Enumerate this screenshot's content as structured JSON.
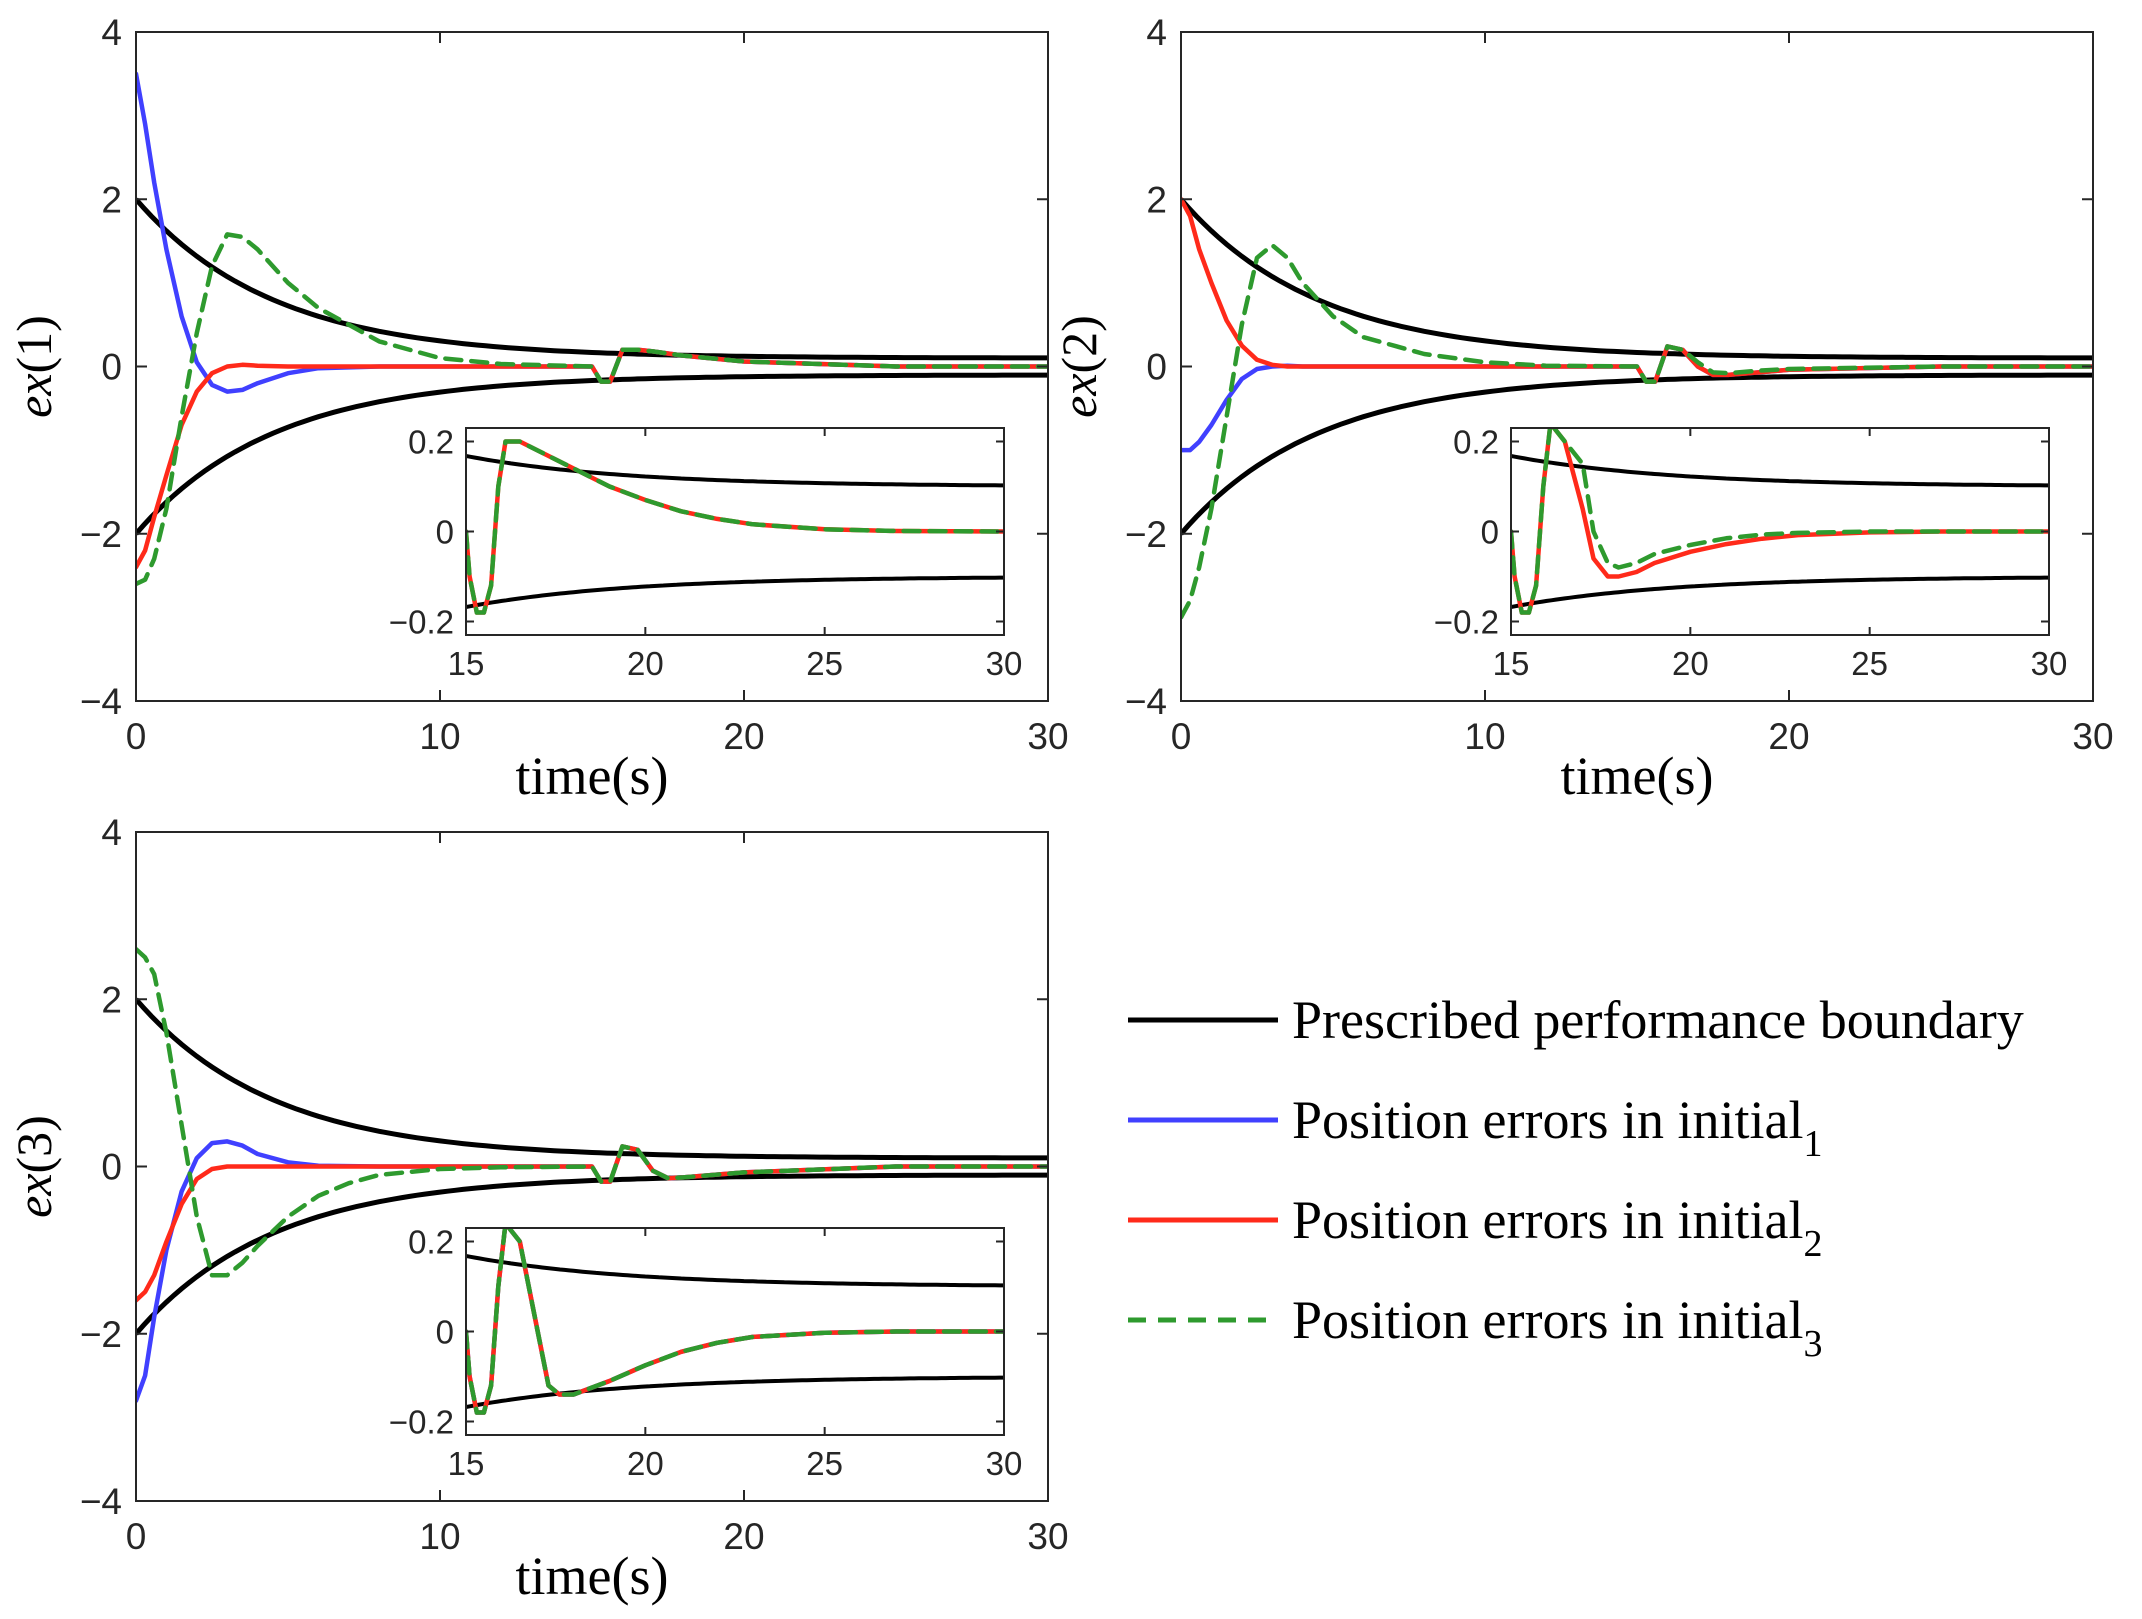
{
  "colors": {
    "boundary": "#000000",
    "initial_1": "#4040ff",
    "initial_2": "#ff2a1a",
    "initial_3": "#2e9a2e"
  },
  "legend": [
    {
      "key": "boundary",
      "label": "Prescribed performance boundary",
      "sub": "",
      "style": "solid"
    },
    {
      "key": "initial_1",
      "label": "Position errors in initial",
      "sub": "1",
      "style": "solid"
    },
    {
      "key": "initial_2",
      "label": "Position errors in initial",
      "sub": "2",
      "style": "solid"
    },
    {
      "key": "initial_3",
      "label": "Position errors in initial",
      "sub": "3",
      "style": "dashed"
    }
  ],
  "chart_data": [
    {
      "type": "line",
      "ylabel": {
        "italic": "ex",
        "rest": "(1)"
      },
      "xlabel": "time(s)",
      "xlim": [
        0,
        30
      ],
      "ylim": [
        -4,
        4
      ],
      "xticks": [
        0,
        10,
        20,
        30
      ],
      "yticks": [
        -4,
        -2,
        0,
        2,
        4
      ],
      "xtick_labels": [
        "0",
        "10",
        "20",
        "30"
      ],
      "ytick_labels": [
        "−4",
        "−2",
        "0",
        "2",
        "4"
      ],
      "series": [
        {
          "key": "initial_1",
          "x": [
            0,
            0.3,
            0.6,
            1,
            1.5,
            2,
            2.5,
            3,
            3.5,
            4,
            5,
            6,
            8,
            10,
            15,
            15.3,
            15.6,
            16,
            16.5,
            17,
            18,
            20,
            25,
            30
          ],
          "y": [
            3.5,
            2.9,
            2.2,
            1.4,
            0.6,
            0.05,
            -0.22,
            -0.3,
            -0.28,
            -0.2,
            -0.08,
            -0.02,
            0,
            0,
            0,
            -0.18,
            -0.18,
            0.2,
            0.2,
            0.18,
            0.13,
            0.06,
            0,
            0
          ]
        },
        {
          "key": "initial_2",
          "x": [
            0,
            0.3,
            0.6,
            1,
            1.5,
            2,
            2.5,
            3,
            3.5,
            4,
            5,
            6,
            8,
            10,
            15,
            15.3,
            15.6,
            16,
            16.5,
            17,
            18,
            20,
            25,
            30
          ],
          "y": [
            -2.4,
            -2.2,
            -1.8,
            -1.3,
            -0.7,
            -0.3,
            -0.08,
            0,
            0.02,
            0.01,
            0,
            0,
            0,
            0,
            0,
            -0.18,
            -0.18,
            0.2,
            0.2,
            0.18,
            0.13,
            0.06,
            0,
            0
          ]
        },
        {
          "key": "initial_3",
          "x": [
            0,
            0.3,
            0.6,
            1,
            1.5,
            2,
            2.5,
            3,
            3.5,
            4,
            5,
            6,
            8,
            10,
            12,
            15,
            15.3,
            15.6,
            16,
            16.5,
            17,
            18,
            20,
            25,
            30
          ],
          "y": [
            -2.6,
            -2.55,
            -2.3,
            -1.7,
            -0.6,
            0.4,
            1.2,
            1.58,
            1.55,
            1.4,
            1.0,
            0.7,
            0.3,
            0.1,
            0.03,
            0,
            -0.18,
            -0.18,
            0.2,
            0.2,
            0.18,
            0.13,
            0.06,
            0,
            0
          ]
        }
      ],
      "inset": {
        "xlim": [
          15,
          30
        ],
        "ylim": [
          -0.23,
          0.23
        ],
        "xticks": [
          15,
          20,
          25,
          30
        ],
        "yticks": [
          -0.2,
          0,
          0.2
        ],
        "xtick_labels": [
          "15",
          "20",
          "25",
          "30"
        ],
        "ytick_labels": [
          "−0.2",
          "0",
          "0.2"
        ],
        "series": [
          {
            "key": "initial_2",
            "x": [
              15,
              15.1,
              15.3,
              15.5,
              15.7,
              15.9,
              16.1,
              16.5,
              17,
              18,
              19,
              20,
              21,
              22,
              23,
              25,
              27,
              30
            ],
            "y": [
              0,
              -0.1,
              -0.18,
              -0.18,
              -0.12,
              0.1,
              0.2,
              0.2,
              0.18,
              0.14,
              0.1,
              0.07,
              0.045,
              0.028,
              0.016,
              0.005,
              0.001,
              0
            ]
          },
          {
            "key": "initial_3",
            "x": [
              15,
              15.1,
              15.3,
              15.5,
              15.7,
              15.9,
              16.1,
              16.5,
              17,
              18,
              19,
              20,
              21,
              22,
              23,
              25,
              27,
              30
            ],
            "y": [
              0,
              -0.1,
              -0.18,
              -0.18,
              -0.12,
              0.1,
              0.2,
              0.2,
              0.18,
              0.14,
              0.1,
              0.07,
              0.045,
              0.028,
              0.016,
              0.005,
              0.001,
              0
            ]
          }
        ]
      }
    },
    {
      "type": "line",
      "ylabel": {
        "italic": "ex",
        "rest": "(2)"
      },
      "xlabel": "time(s)",
      "xlim": [
        0,
        30
      ],
      "ylim": [
        -4,
        4
      ],
      "xticks": [
        0,
        10,
        20,
        30
      ],
      "yticks": [
        -4,
        -2,
        0,
        2,
        4
      ],
      "xtick_labels": [
        "0",
        "10",
        "20",
        "30"
      ],
      "ytick_labels": [
        "−4",
        "−2",
        "0",
        "2",
        "4"
      ],
      "series": [
        {
          "key": "initial_1",
          "x": [
            0,
            0.3,
            0.6,
            1,
            1.5,
            2,
            2.5,
            3,
            3.5,
            4,
            6,
            10,
            15,
            15.3,
            15.6,
            16,
            16.5,
            17,
            17.5,
            18,
            19,
            20,
            25,
            30
          ],
          "y": [
            -1.0,
            -1.0,
            -0.9,
            -0.7,
            -0.4,
            -0.15,
            -0.03,
            0,
            0.01,
            0,
            0,
            0,
            0,
            -0.18,
            -0.18,
            0.24,
            0.2,
            0.0,
            -0.1,
            -0.1,
            -0.07,
            -0.04,
            0,
            0
          ]
        },
        {
          "key": "initial_2",
          "x": [
            0,
            0.3,
            0.6,
            1,
            1.5,
            2,
            2.5,
            3,
            3.5,
            4,
            6,
            10,
            15,
            15.3,
            15.6,
            16,
            16.5,
            17,
            17.5,
            18,
            19,
            20,
            25,
            30
          ],
          "y": [
            2.0,
            1.8,
            1.4,
            1.0,
            0.55,
            0.25,
            0.08,
            0.02,
            0,
            0,
            0,
            0,
            0,
            -0.18,
            -0.18,
            0.24,
            0.2,
            0.0,
            -0.1,
            -0.1,
            -0.07,
            -0.04,
            0,
            0
          ]
        },
        {
          "key": "initial_3",
          "x": [
            0,
            0.3,
            0.6,
            1,
            1.5,
            2,
            2.5,
            3,
            3.5,
            4,
            5,
            6,
            8,
            10,
            12,
            15,
            15.3,
            15.6,
            16,
            16.5,
            17,
            17.5,
            18,
            19,
            20,
            25,
            30
          ],
          "y": [
            -3.0,
            -2.8,
            -2.4,
            -1.7,
            -0.6,
            0.5,
            1.3,
            1.45,
            1.3,
            1.0,
            0.6,
            0.35,
            0.15,
            0.05,
            0.01,
            0,
            -0.18,
            -0.18,
            0.24,
            0.2,
            0.05,
            -0.07,
            -0.08,
            -0.05,
            -0.03,
            0,
            0
          ]
        }
      ],
      "inset": {
        "xlim": [
          15,
          30
        ],
        "ylim": [
          -0.23,
          0.23
        ],
        "xticks": [
          15,
          20,
          25,
          30
        ],
        "yticks": [
          -0.2,
          0,
          0.2
        ],
        "xtick_labels": [
          "15",
          "20",
          "25",
          "30"
        ],
        "ytick_labels": [
          "−0.2",
          "0",
          "0.2"
        ],
        "series": [
          {
            "key": "initial_2",
            "x": [
              15,
              15.1,
              15.3,
              15.5,
              15.7,
              15.9,
              16.1,
              16.5,
              17,
              17.3,
              17.7,
              18,
              18.5,
              19,
              20,
              21,
              22,
              23,
              25,
              27,
              30
            ],
            "y": [
              0,
              -0.1,
              -0.18,
              -0.18,
              -0.12,
              0.1,
              0.24,
              0.2,
              0.05,
              -0.06,
              -0.1,
              -0.1,
              -0.09,
              -0.07,
              -0.045,
              -0.028,
              -0.016,
              -0.008,
              -0.002,
              0,
              0
            ]
          },
          {
            "key": "initial_3",
            "x": [
              15,
              15.1,
              15.3,
              15.5,
              15.7,
              15.9,
              16.1,
              16.5,
              17,
              17.3,
              17.7,
              18,
              18.5,
              19,
              20,
              21,
              22,
              23,
              25,
              27,
              30
            ],
            "y": [
              0,
              -0.1,
              -0.18,
              -0.18,
              -0.12,
              0.1,
              0.24,
              0.2,
              0.15,
              0.0,
              -0.07,
              -0.08,
              -0.07,
              -0.05,
              -0.03,
              -0.015,
              -0.007,
              -0.003,
              0,
              0,
              0
            ]
          }
        ]
      }
    },
    {
      "type": "line",
      "ylabel": {
        "italic": "ex",
        "rest": "(3)"
      },
      "xlabel": "time(s)",
      "xlim": [
        0,
        30
      ],
      "ylim": [
        -4,
        4
      ],
      "xticks": [
        0,
        10,
        20,
        30
      ],
      "yticks": [
        -4,
        -2,
        0,
        2,
        4
      ],
      "xtick_labels": [
        "0",
        "10",
        "20",
        "30"
      ],
      "ytick_labels": [
        "−4",
        "−2",
        "0",
        "2",
        "4"
      ],
      "series": [
        {
          "key": "initial_1",
          "x": [
            0,
            0.3,
            0.6,
            1,
            1.5,
            2,
            2.5,
            3,
            3.5,
            4,
            5,
            6,
            8,
            10,
            15,
            15.3,
            15.6,
            16,
            16.5,
            17,
            17.5,
            18,
            20,
            25,
            30
          ],
          "y": [
            -2.8,
            -2.5,
            -1.8,
            -1.0,
            -0.3,
            0.1,
            0.28,
            0.3,
            0.25,
            0.15,
            0.05,
            0.01,
            0,
            0,
            0,
            -0.18,
            -0.18,
            0.24,
            0.2,
            -0.05,
            -0.14,
            -0.13,
            -0.07,
            0,
            0
          ]
        },
        {
          "key": "initial_2",
          "x": [
            0,
            0.3,
            0.6,
            1,
            1.5,
            2,
            2.5,
            3,
            3.5,
            4,
            5,
            6,
            8,
            10,
            15,
            15.3,
            15.6,
            16,
            16.5,
            17,
            17.5,
            18,
            20,
            25,
            30
          ],
          "y": [
            -1.6,
            -1.5,
            -1.3,
            -0.9,
            -0.45,
            -0.15,
            -0.03,
            0,
            0,
            0,
            0,
            0,
            0,
            0,
            0,
            -0.18,
            -0.18,
            0.24,
            0.2,
            -0.05,
            -0.14,
            -0.13,
            -0.07,
            0,
            0
          ]
        },
        {
          "key": "initial_3",
          "x": [
            0,
            0.3,
            0.6,
            1,
            1.5,
            2,
            2.5,
            3,
            3.5,
            4,
            5,
            6,
            7,
            8,
            10,
            12,
            15,
            15.3,
            15.6,
            16,
            16.5,
            17,
            17.5,
            18,
            20,
            25,
            30
          ],
          "y": [
            2.6,
            2.5,
            2.3,
            1.6,
            0.5,
            -0.6,
            -1.3,
            -1.3,
            -1.15,
            -0.95,
            -0.6,
            -0.35,
            -0.2,
            -0.1,
            -0.03,
            -0.01,
            0,
            -0.18,
            -0.18,
            0.24,
            0.2,
            -0.05,
            -0.14,
            -0.13,
            -0.07,
            0,
            0
          ]
        }
      ],
      "inset": {
        "xlim": [
          15,
          30
        ],
        "ylim": [
          -0.23,
          0.23
        ],
        "xticks": [
          15,
          20,
          25,
          30
        ],
        "yticks": [
          -0.2,
          0,
          0.2
        ],
        "xtick_labels": [
          "15",
          "20",
          "25",
          "30"
        ],
        "ytick_labels": [
          "−0.2",
          "0",
          "0.2"
        ],
        "series": [
          {
            "key": "initial_1",
            "x": [
              15,
              15.1,
              15.3,
              15.5,
              15.7,
              15.9,
              16.1,
              16.5,
              17,
              17.3,
              17.6,
              18,
              19,
              20,
              21,
              22,
              23,
              25,
              27,
              30
            ],
            "y": [
              0,
              -0.1,
              -0.18,
              -0.18,
              -0.12,
              0.1,
              0.24,
              0.2,
              0.0,
              -0.12,
              -0.14,
              -0.14,
              -0.11,
              -0.075,
              -0.045,
              -0.025,
              -0.012,
              -0.003,
              0,
              0
            ]
          },
          {
            "key": "initial_2",
            "x": [
              15,
              15.1,
              15.3,
              15.5,
              15.7,
              15.9,
              16.1,
              16.5,
              17,
              17.3,
              17.6,
              18,
              19,
              20,
              21,
              22,
              23,
              25,
              27,
              30
            ],
            "y": [
              0,
              -0.1,
              -0.18,
              -0.18,
              -0.12,
              0.1,
              0.24,
              0.2,
              0.0,
              -0.12,
              -0.14,
              -0.14,
              -0.11,
              -0.075,
              -0.045,
              -0.025,
              -0.012,
              -0.003,
              0,
              0
            ]
          },
          {
            "key": "initial_3",
            "x": [
              15,
              15.1,
              15.3,
              15.5,
              15.7,
              15.9,
              16.1,
              16.5,
              17,
              17.3,
              17.6,
              18,
              19,
              20,
              21,
              22,
              23,
              25,
              27,
              30
            ],
            "y": [
              0,
              -0.1,
              -0.18,
              -0.18,
              -0.12,
              0.1,
              0.24,
              0.2,
              0.0,
              -0.12,
              -0.14,
              -0.14,
              -0.11,
              -0.075,
              -0.045,
              -0.025,
              -0.012,
              -0.003,
              0,
              0
            ]
          }
        ]
      }
    }
  ]
}
